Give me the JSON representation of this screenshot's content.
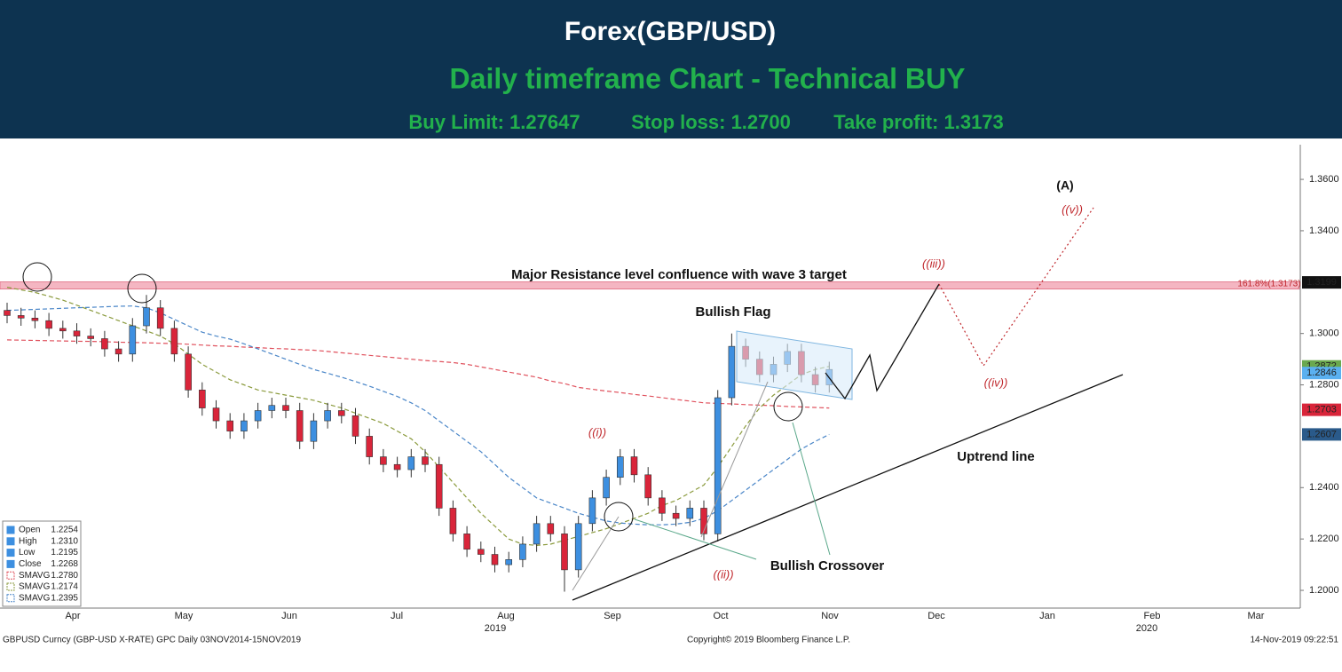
{
  "header": {
    "title": "Forex(GBP/USD)",
    "subtitle": "Daily timeframe Chart - Technical BUY",
    "trade": [
      "Buy Limit: 1.27647",
      "Stop loss: 1.2700",
      "Take profit: 1.3173"
    ]
  },
  "chart_data": {
    "type": "candlestick",
    "categories": [
      null,
      null,
      null,
      null,
      null,
      null,
      null,
      null,
      null,
      null,
      null,
      null,
      null,
      null,
      null,
      null,
      null,
      null,
      null,
      null,
      null,
      null,
      null,
      null,
      null,
      null,
      null,
      null,
      null,
      null,
      null,
      null,
      null,
      null,
      null,
      null,
      null,
      null,
      null,
      null,
      null,
      null,
      null,
      null,
      null,
      null,
      null,
      null,
      null,
      null,
      null,
      null,
      null,
      null,
      null,
      null,
      null,
      null,
      null,
      null
    ],
    "open": [
      1.309,
      1.307,
      1.306,
      1.305,
      1.302,
      1.301,
      1.299,
      1.298,
      1.294,
      1.292,
      1.303,
      1.31,
      1.302,
      1.292,
      1.278,
      1.271,
      1.266,
      1.262,
      1.266,
      1.27,
      1.272,
      1.27,
      1.258,
      1.266,
      1.27,
      1.268,
      1.26,
      1.252,
      1.249,
      1.247,
      1.252,
      1.249,
      1.232,
      1.222,
      1.216,
      1.214,
      1.21,
      1.212,
      1.218,
      1.226,
      1.222,
      1.208,
      1.226,
      1.236,
      1.244,
      1.252,
      1.245,
      1.236,
      1.23,
      1.228,
      1.232,
      1.222,
      1.275,
      1.295,
      1.29,
      1.284,
      1.288,
      1.293,
      1.284,
      1.28
    ],
    "high": [
      1.312,
      1.31,
      1.309,
      1.308,
      1.305,
      1.304,
      1.302,
      1.301,
      1.297,
      1.306,
      1.315,
      1.313,
      1.305,
      1.295,
      1.281,
      1.274,
      1.269,
      1.269,
      1.273,
      1.275,
      1.275,
      1.273,
      1.269,
      1.273,
      1.273,
      1.271,
      1.263,
      1.255,
      1.252,
      1.255,
      1.255,
      1.252,
      1.235,
      1.225,
      1.219,
      1.217,
      1.215,
      1.221,
      1.229,
      1.229,
      1.225,
      1.229,
      1.239,
      1.247,
      1.255,
      1.255,
      1.248,
      1.239,
      1.233,
      1.235,
      1.235,
      1.278,
      1.3,
      1.298,
      1.293,
      1.291,
      1.296,
      1.296,
      1.287,
      1.289
    ],
    "low": [
      1.304,
      1.303,
      1.302,
      1.299,
      1.298,
      1.296,
      1.295,
      1.291,
      1.289,
      1.289,
      1.3,
      1.299,
      1.289,
      1.275,
      1.268,
      1.263,
      1.259,
      1.259,
      1.263,
      1.267,
      1.267,
      1.255,
      1.255,
      1.263,
      1.265,
      1.257,
      1.249,
      1.246,
      1.244,
      1.244,
      1.246,
      1.229,
      1.219,
      1.213,
      1.211,
      1.207,
      1.207,
      1.209,
      1.215,
      1.219,
      1.1995,
      1.205,
      1.223,
      1.233,
      1.241,
      1.242,
      1.233,
      1.227,
      1.225,
      1.225,
      1.2195,
      1.219,
      1.272,
      1.287,
      1.281,
      1.281,
      1.285,
      1.281,
      1.277,
      1.277
    ],
    "close": [
      1.307,
      1.306,
      1.305,
      1.302,
      1.301,
      1.299,
      1.298,
      1.294,
      1.292,
      1.303,
      1.31,
      1.302,
      1.292,
      1.278,
      1.271,
      1.266,
      1.262,
      1.266,
      1.27,
      1.272,
      1.27,
      1.258,
      1.266,
      1.27,
      1.268,
      1.26,
      1.252,
      1.249,
      1.247,
      1.252,
      1.249,
      1.232,
      1.222,
      1.216,
      1.214,
      1.21,
      1.212,
      1.218,
      1.226,
      1.222,
      1.208,
      1.226,
      1.236,
      1.244,
      1.252,
      1.245,
      1.236,
      1.23,
      1.228,
      1.232,
      1.222,
      1.275,
      1.295,
      1.29,
      1.284,
      1.288,
      1.293,
      1.284,
      1.28,
      1.286
    ],
    "up_color": "#3d8fe0",
    "down_color": "#d9253a",
    "overlays": [
      {
        "color": "#e0525e",
        "values": [
          1.2975,
          1.2974,
          1.2973,
          1.2972,
          1.2971,
          1.297,
          1.2969,
          1.2968,
          1.2966,
          1.2965,
          1.2964,
          1.2962,
          1.2961,
          1.2958,
          1.2955,
          1.2952,
          1.295,
          1.2947,
          1.2945,
          1.2942,
          1.294,
          1.2937,
          1.2935,
          1.293,
          1.2925,
          1.292,
          1.2915,
          1.291,
          1.2905,
          1.29,
          1.2895,
          1.2891,
          1.2887,
          1.288,
          1.287,
          1.286,
          1.285,
          1.284,
          1.283,
          1.2815,
          1.2805,
          1.279,
          1.2783,
          1.2776,
          1.277,
          1.2763,
          1.2757,
          1.275,
          1.2743,
          1.2737,
          1.273,
          1.2728,
          1.2726,
          1.2723,
          1.2721,
          1.2719,
          1.2716,
          1.2714,
          1.2712,
          1.271
        ]
      },
      {
        "color": "#8a9a3c",
        "values": [
          1.318,
          1.317,
          1.316,
          1.3145,
          1.313,
          1.311,
          1.309,
          1.307,
          1.305,
          1.303,
          1.301,
          1.299,
          1.296,
          1.292,
          1.288,
          1.285,
          1.282,
          1.28,
          1.278,
          1.277,
          1.276,
          1.275,
          1.274,
          1.2725,
          1.271,
          1.269,
          1.267,
          1.265,
          1.262,
          1.259,
          1.254,
          1.248,
          1.242,
          1.236,
          1.23,
          1.225,
          1.22,
          1.218,
          1.2175,
          1.218,
          1.2195,
          1.221,
          1.2225,
          1.224,
          1.226,
          1.228,
          1.23,
          1.233,
          1.235,
          1.238,
          1.241,
          1.248,
          1.256,
          1.264,
          1.271,
          1.276,
          1.28,
          1.284,
          1.286,
          1.2872
        ]
      },
      {
        "color": "#4a86c8",
        "values": [
          1.309,
          1.3092,
          1.3094,
          1.3096,
          1.3098,
          1.31,
          1.3102,
          1.3104,
          1.3106,
          1.3107,
          1.31,
          1.308,
          1.3055,
          1.303,
          1.3005,
          1.299,
          1.2978,
          1.296,
          1.294,
          1.292,
          1.29,
          1.288,
          1.286,
          1.2845,
          1.283,
          1.2813,
          1.2795,
          1.2775,
          1.2755,
          1.273,
          1.27,
          1.266,
          1.262,
          1.258,
          1.254,
          1.249,
          1.244,
          1.24,
          1.236,
          1.234,
          1.232,
          1.23,
          1.2285,
          1.227,
          1.2262,
          1.2258,
          1.2255,
          1.2255,
          1.2258,
          1.2265,
          1.228,
          1.231,
          1.235,
          1.239,
          1.243,
          1.247,
          1.251,
          1.255,
          1.258,
          1.2607
        ]
      }
    ],
    "ylim": [
      1.1931,
      1.3735
    ],
    "yticks": [
      {
        "value": 1.2,
        "label": "1.2000"
      },
      {
        "value": 1.22,
        "label": "1.2200"
      },
      {
        "value": 1.24,
        "label": "1.2400"
      },
      {
        "value": 1.28,
        "label": "1.2800"
      },
      {
        "value": 1.3,
        "label": "1.3000"
      },
      {
        "value": 1.34,
        "label": "1.3400"
      },
      {
        "value": 1.36,
        "label": "1.3600"
      }
    ],
    "month_labels": [
      "Apr",
      "May",
      "Jun",
      "Jul",
      "Aug",
      "Sep",
      "Oct",
      "Nov",
      "Dec",
      "Jan",
      "Feb",
      "Mar"
    ],
    "year_labels": [
      "2019",
      "2020"
    ],
    "price_tags": [
      {
        "value": 1.3199,
        "color": "#111111",
        "text_color": "#ffffff"
      },
      {
        "value": 1.2872,
        "color": "#6aa84f",
        "text_color": "#ffffff"
      },
      {
        "value": 1.2846,
        "color": "#5ab0f0",
        "text_color": "#0b2a4a"
      },
      {
        "value": 1.2703,
        "color": "#d9253a",
        "text_color": "#ffffff"
      },
      {
        "value": 1.2607,
        "color": "#2a5a8a",
        "text_color": "#ffffff"
      }
    ],
    "resistance": {
      "label": "Major Resistance level confluence with wave 3 target",
      "fib_label": "161.8%(1.3173)",
      "range": [
        1.3173,
        1.3201
      ],
      "color": "#f4b6c2"
    },
    "annotations": {
      "flag": "Bullish Flag",
      "uptrend": "Uptrend line",
      "crossover": "Bullish Crossover"
    },
    "waves": {
      "A": "(A)",
      "v": "((v))",
      "iii": "((iii))",
      "iv": "((iv))",
      "i": "((i))",
      "ii": "((ii))"
    },
    "legend": [
      {
        "name": "Open",
        "value": "1.2254",
        "color": "#3d8fe0"
      },
      {
        "name": "High",
        "value": "1.2310",
        "color": "#3d8fe0"
      },
      {
        "name": "Low",
        "value": "1.2195",
        "color": "#3d8fe0"
      },
      {
        "name": "Close",
        "value": "1.2268",
        "color": "#3d8fe0"
      },
      {
        "name": "SMAVG",
        "value": "1.2780",
        "color": "#e0525e"
      },
      {
        "name": "SMAVG",
        "value": "1.2174",
        "color": "#8a9a3c"
      },
      {
        "name": "SMAVG",
        "value": "1.2395",
        "color": "#4a86c8"
      }
    ]
  },
  "footer": {
    "left": "GBPUSD Curncy (GBP-USD X-RATE) GPC  Daily 03NOV2014-15NOV2019",
    "center": "Copyright© 2019 Bloomberg Finance L.P.",
    "right": "14-Nov-2019 09:22:51"
  }
}
